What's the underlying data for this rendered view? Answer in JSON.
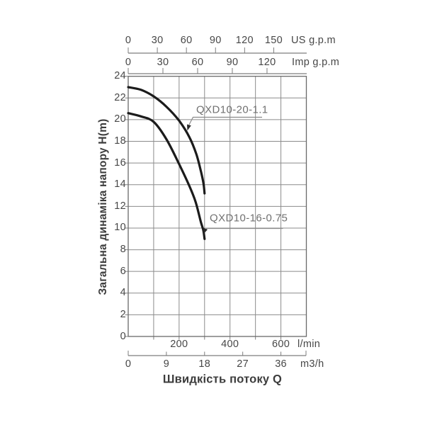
{
  "chart_data": {
    "type": "line",
    "title": "",
    "xlabel": "Швидкість потоку Q",
    "ylabel": "Загальна динаміка напору H(m)",
    "ylim": [
      0,
      24
    ],
    "xlim_lmin": [
      0,
      700
    ],
    "grid": true,
    "y_ticks": [
      24,
      22,
      20,
      18,
      16,
      14,
      12,
      10,
      8,
      6,
      4,
      2,
      0
    ],
    "x_axes": [
      {
        "id": "us_gpm",
        "unit": "US g.p.m",
        "position": "top",
        "ticks": [
          0,
          30,
          60,
          90,
          120,
          150
        ]
      },
      {
        "id": "imp_gpm",
        "unit": "Imp g.p.m",
        "position": "top",
        "ticks": [
          0,
          30,
          60,
          90,
          120
        ]
      },
      {
        "id": "l_min",
        "unit": "l/min",
        "position": "bottom",
        "ticks": [
          200,
          400,
          600
        ]
      },
      {
        "id": "m3_h",
        "unit": "m3/h",
        "position": "bottom",
        "ticks": [
          0,
          9,
          18,
          27,
          36
        ]
      }
    ],
    "series": [
      {
        "name": "QXD10-20-1.1",
        "x_lmin": [
          0,
          50,
          100,
          150,
          200,
          240,
          268,
          286,
          296,
          300
        ],
        "head_m": [
          23,
          22.75,
          22.15,
          21.2,
          19.9,
          18.4,
          16.8,
          15.2,
          14.1,
          13.2
        ]
      },
      {
        "name": "QXD10-16-0.75",
        "x_lmin": [
          0,
          50,
          100,
          150,
          200,
          240,
          265,
          285,
          295,
          300
        ],
        "head_m": [
          20.6,
          20.3,
          19.8,
          18.2,
          15.9,
          13.9,
          12.4,
          10.6,
          9.8,
          9.0
        ]
      }
    ],
    "colors": {
      "background": "#ffffff",
      "curve": "#1b1b1b",
      "grid": "#8b8b8b",
      "border": "#6a6a6a",
      "axis": "#7d7d7d",
      "text": "#474747",
      "series_label": "#707070",
      "leader": "#8a8a8a",
      "arrow": "#2a2a2a"
    }
  }
}
